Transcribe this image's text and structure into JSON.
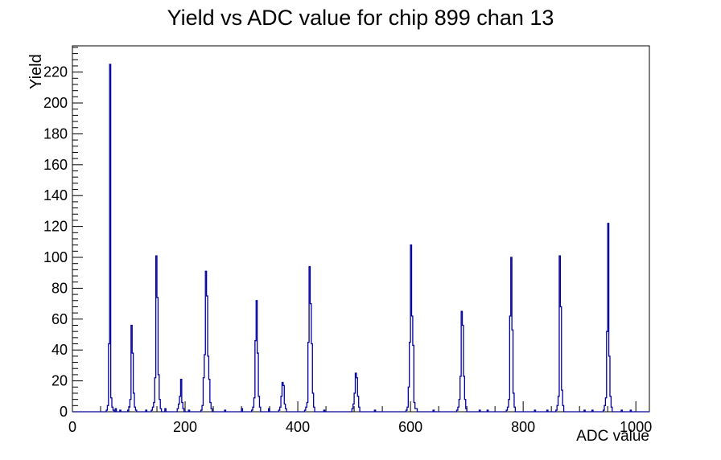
{
  "chart_data": {
    "type": "histogram",
    "title": "Yield vs ADC value for chip 899 chan 13",
    "xlabel": "ADC value",
    "ylabel": "Yield",
    "xlim": [
      0,
      1024
    ],
    "ylim": [
      0,
      237
    ],
    "x_major_ticks": [
      0,
      200,
      400,
      600,
      800,
      1000
    ],
    "x_minor_step": 50,
    "y_major_tick_step": 20,
    "y_max_label": 220,
    "y_minor_step": 4,
    "grid": "off",
    "legend": "none",
    "line_color": "#00009c",
    "axis_color": "#000000",
    "bin_width": 2,
    "bins": [
      [
        60,
        1
      ],
      [
        62,
        4
      ],
      [
        64,
        44
      ],
      [
        66,
        225
      ],
      [
        68,
        9
      ],
      [
        70,
        3
      ],
      [
        72,
        1
      ],
      [
        76,
        2
      ],
      [
        84,
        1
      ],
      [
        98,
        1
      ],
      [
        100,
        3
      ],
      [
        102,
        8
      ],
      [
        104,
        56
      ],
      [
        106,
        38
      ],
      [
        108,
        12
      ],
      [
        110,
        3
      ],
      [
        112,
        1
      ],
      [
        130,
        1
      ],
      [
        140,
        1
      ],
      [
        142,
        3
      ],
      [
        144,
        6
      ],
      [
        146,
        22
      ],
      [
        148,
        101
      ],
      [
        150,
        74
      ],
      [
        152,
        24
      ],
      [
        154,
        8
      ],
      [
        156,
        2
      ],
      [
        164,
        2
      ],
      [
        186,
        2
      ],
      [
        188,
        5
      ],
      [
        190,
        10
      ],
      [
        192,
        21
      ],
      [
        194,
        6
      ],
      [
        196,
        2
      ],
      [
        206,
        1
      ],
      [
        228,
        1
      ],
      [
        230,
        4
      ],
      [
        232,
        22
      ],
      [
        234,
        37
      ],
      [
        236,
        91
      ],
      [
        238,
        75
      ],
      [
        240,
        36
      ],
      [
        242,
        21
      ],
      [
        244,
        6
      ],
      [
        246,
        2
      ],
      [
        270,
        1
      ],
      [
        300,
        2
      ],
      [
        318,
        1
      ],
      [
        320,
        3
      ],
      [
        322,
        9
      ],
      [
        324,
        46
      ],
      [
        326,
        72
      ],
      [
        328,
        38
      ],
      [
        330,
        10
      ],
      [
        332,
        3
      ],
      [
        348,
        2
      ],
      [
        366,
        1
      ],
      [
        368,
        3
      ],
      [
        370,
        10
      ],
      [
        372,
        19
      ],
      [
        374,
        17
      ],
      [
        376,
        5
      ],
      [
        378,
        2
      ],
      [
        412,
        1
      ],
      [
        414,
        3
      ],
      [
        416,
        6
      ],
      [
        418,
        45
      ],
      [
        420,
        94
      ],
      [
        422,
        70
      ],
      [
        424,
        44
      ],
      [
        426,
        12
      ],
      [
        428,
        3
      ],
      [
        446,
        1
      ],
      [
        496,
        2
      ],
      [
        498,
        5
      ],
      [
        500,
        12
      ],
      [
        502,
        25
      ],
      [
        504,
        22
      ],
      [
        506,
        10
      ],
      [
        508,
        3
      ],
      [
        536,
        1
      ],
      [
        592,
        1
      ],
      [
        594,
        3
      ],
      [
        596,
        16
      ],
      [
        598,
        45
      ],
      [
        600,
        108
      ],
      [
        602,
        62
      ],
      [
        604,
        43
      ],
      [
        606,
        6
      ],
      [
        608,
        2
      ],
      [
        610,
        2
      ],
      [
        640,
        1
      ],
      [
        682,
        1
      ],
      [
        684,
        3
      ],
      [
        686,
        8
      ],
      [
        688,
        23
      ],
      [
        690,
        65
      ],
      [
        692,
        56
      ],
      [
        694,
        23
      ],
      [
        696,
        8
      ],
      [
        698,
        2
      ],
      [
        722,
        1
      ],
      [
        736,
        1
      ],
      [
        770,
        1
      ],
      [
        772,
        3
      ],
      [
        774,
        8
      ],
      [
        776,
        62
      ],
      [
        778,
        100
      ],
      [
        780,
        53
      ],
      [
        782,
        12
      ],
      [
        784,
        3
      ],
      [
        820,
        1
      ],
      [
        842,
        1
      ],
      [
        858,
        1
      ],
      [
        860,
        4
      ],
      [
        862,
        10
      ],
      [
        864,
        101
      ],
      [
        866,
        68
      ],
      [
        868,
        14
      ],
      [
        870,
        4
      ],
      [
        908,
        1
      ],
      [
        922,
        1
      ],
      [
        942,
        1
      ],
      [
        944,
        4
      ],
      [
        946,
        9
      ],
      [
        948,
        52
      ],
      [
        950,
        122
      ],
      [
        952,
        36
      ],
      [
        954,
        10
      ],
      [
        956,
        3
      ],
      [
        974,
        1
      ],
      [
        990,
        1
      ]
    ]
  }
}
